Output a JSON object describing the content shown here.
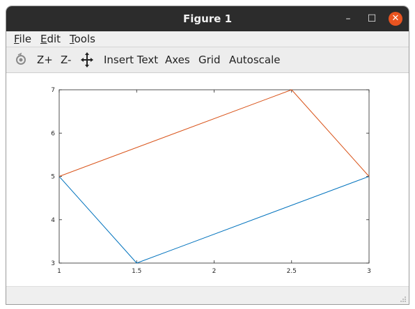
{
  "window": {
    "title": "Figure 1"
  },
  "window_controls": {
    "minimize": "–",
    "maximize": "☐",
    "close": "✕"
  },
  "menubar": {
    "items": [
      {
        "mnemonic": "F",
        "rest": "ile"
      },
      {
        "mnemonic": "E",
        "rest": "dit"
      },
      {
        "mnemonic": "T",
        "rest": "ools"
      }
    ]
  },
  "toolbar": {
    "zoom_in": "Z+",
    "zoom_out": "Z-",
    "insert_text": "Insert Text",
    "axes": "Axes",
    "grid": "Grid",
    "autoscale": "Autoscale"
  },
  "chart_data": {
    "type": "line",
    "title": "",
    "xlabel": "",
    "ylabel": "",
    "xlim": [
      1,
      3
    ],
    "ylim": [
      3,
      7
    ],
    "xticks": [
      1,
      1.5,
      2,
      2.5,
      3
    ],
    "xtick_labels": [
      "1",
      "1.5",
      "2",
      "2.5",
      "3"
    ],
    "yticks": [
      3,
      4,
      5,
      6,
      7
    ],
    "ytick_labels": [
      "3",
      "4",
      "5",
      "6",
      "7"
    ],
    "grid": false,
    "series": [
      {
        "color": "#0072bd",
        "x": [
          1,
          1.5,
          3
        ],
        "y": [
          5,
          3,
          5
        ]
      },
      {
        "color": "#d95319",
        "x": [
          1,
          2.5,
          3
        ],
        "y": [
          5,
          7,
          5
        ]
      }
    ]
  }
}
